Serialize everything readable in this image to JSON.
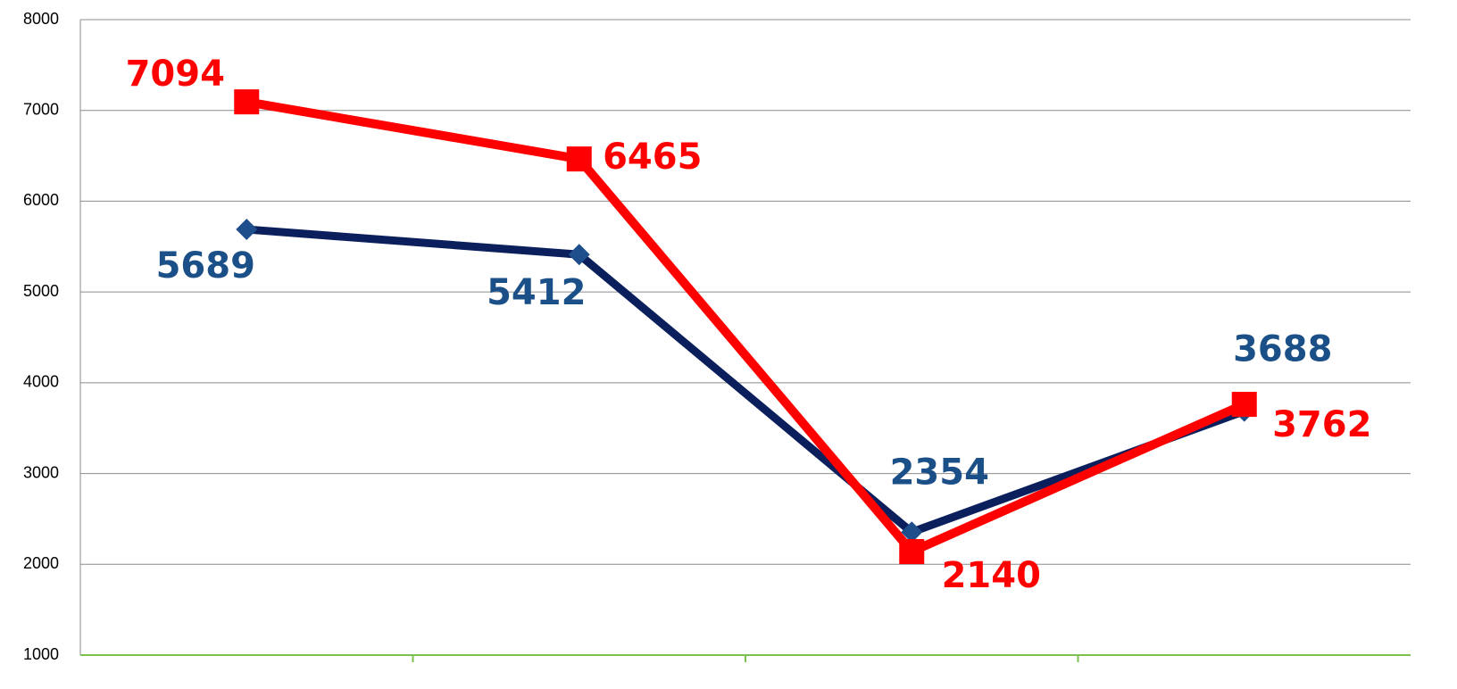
{
  "chart_data": {
    "type": "line",
    "categories": [
      null,
      null,
      null,
      null
    ],
    "series": [
      {
        "color": "#0b1f5c",
        "marker": "diamond",
        "marker_color": "#1f4e8c",
        "label_color": "#1a4f88",
        "values": [
          5689,
          5412,
          2354,
          3688
        ]
      },
      {
        "color": "#ff0000",
        "marker": "square",
        "marker_color": "#ff0000",
        "label_color": "#ff0000",
        "values": [
          7094,
          6465,
          2140,
          3762
        ]
      }
    ],
    "ylim": [
      1000,
      8000
    ],
    "yticks": [
      1000,
      2000,
      3000,
      4000,
      5000,
      6000,
      7000,
      8000
    ],
    "grid": true
  }
}
